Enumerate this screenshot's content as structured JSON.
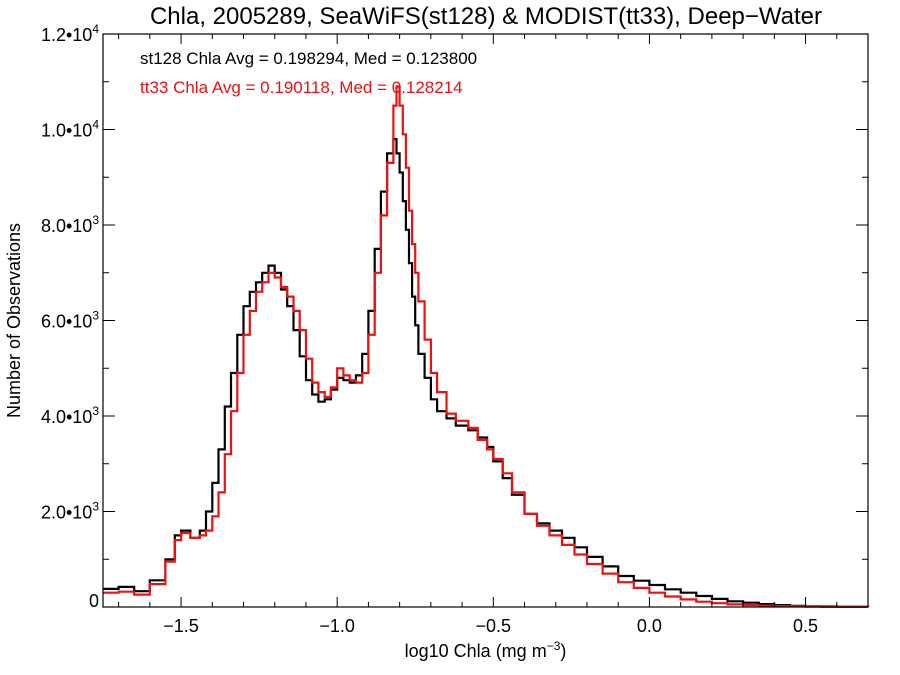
{
  "chart_data": {
    "type": "line",
    "step": true,
    "title": "Chla, 2005289, SeaWiFS(st128) & MODIST(tt33), Deep−Water",
    "xlabel": "log10 Chla (mg m",
    "xlabel_sup": "−3",
    "xlabel_tail": ")",
    "ylabel": "Number of Observations",
    "xlim": [
      -1.75,
      0.7
    ],
    "ylim": [
      0,
      12000
    ],
    "grid": false,
    "x_ticks": [
      {
        "value": -1.5,
        "label": "−1.5"
      },
      {
        "value": -1.0,
        "label": "−1.0"
      },
      {
        "value": -0.5,
        "label": "−0.5"
      },
      {
        "value": 0.0,
        "label": "0.0"
      },
      {
        "value": 0.5,
        "label": "0.5"
      }
    ],
    "y_ticks": [
      {
        "value": 0,
        "mant": "0",
        "exp": ""
      },
      {
        "value": 2000,
        "mant": "2.0•10",
        "exp": "3"
      },
      {
        "value": 4000,
        "mant": "4.0•10",
        "exp": "3"
      },
      {
        "value": 6000,
        "mant": "6.0•10",
        "exp": "3"
      },
      {
        "value": 8000,
        "mant": "8.0•10",
        "exp": "3"
      },
      {
        "value": 10000,
        "mant": "1.0•10",
        "exp": "4"
      },
      {
        "value": 12000,
        "mant": "1.2•10",
        "exp": "4"
      }
    ],
    "annotations": [
      {
        "text": "st128 Chla Avg = 0.198294, Med = 0.123800",
        "color": "#000000"
      },
      {
        "text": "tt33 Chla Avg = 0.190118, Med = 0.128214",
        "color": "#ee1111"
      }
    ],
    "series": [
      {
        "color": "#000000",
        "points": [
          [
            -1.75,
            380
          ],
          [
            -1.7,
            420
          ],
          [
            -1.65,
            330
          ],
          [
            -1.6,
            560
          ],
          [
            -1.55,
            1000
          ],
          [
            -1.52,
            1500
          ],
          [
            -1.5,
            1600
          ],
          [
            -1.47,
            1450
          ],
          [
            -1.44,
            1600
          ],
          [
            -1.42,
            2000
          ],
          [
            -1.4,
            2600
          ],
          [
            -1.38,
            3300
          ],
          [
            -1.36,
            4200
          ],
          [
            -1.34,
            4900
          ],
          [
            -1.32,
            5700
          ],
          [
            -1.3,
            6300
          ],
          [
            -1.28,
            6600
          ],
          [
            -1.26,
            6800
          ],
          [
            -1.24,
            7000
          ],
          [
            -1.22,
            7150
          ],
          [
            -1.2,
            7000
          ],
          [
            -1.18,
            6650
          ],
          [
            -1.16,
            6300
          ],
          [
            -1.14,
            5800
          ],
          [
            -1.12,
            5250
          ],
          [
            -1.1,
            4750
          ],
          [
            -1.08,
            4450
          ],
          [
            -1.06,
            4300
          ],
          [
            -1.04,
            4350
          ],
          [
            -1.02,
            4550
          ],
          [
            -1.0,
            4800
          ],
          [
            -0.98,
            4750
          ],
          [
            -0.96,
            4700
          ],
          [
            -0.94,
            4850
          ],
          [
            -0.92,
            5300
          ],
          [
            -0.9,
            6200
          ],
          [
            -0.88,
            7500
          ],
          [
            -0.86,
            8700
          ],
          [
            -0.84,
            9500
          ],
          [
            -0.82,
            9800
          ],
          [
            -0.81,
            9500
          ],
          [
            -0.8,
            9100
          ],
          [
            -0.79,
            8500
          ],
          [
            -0.78,
            7900
          ],
          [
            -0.77,
            7200
          ],
          [
            -0.76,
            6500
          ],
          [
            -0.75,
            5900
          ],
          [
            -0.74,
            5300
          ],
          [
            -0.72,
            4800
          ],
          [
            -0.7,
            4350
          ],
          [
            -0.68,
            4100
          ],
          [
            -0.65,
            3950
          ],
          [
            -0.62,
            3800
          ],
          [
            -0.58,
            3700
          ],
          [
            -0.55,
            3550
          ],
          [
            -0.52,
            3350
          ],
          [
            -0.5,
            3050
          ],
          [
            -0.47,
            2700
          ],
          [
            -0.44,
            2350
          ],
          [
            -0.4,
            1950
          ],
          [
            -0.36,
            1750
          ],
          [
            -0.32,
            1600
          ],
          [
            -0.28,
            1450
          ],
          [
            -0.24,
            1250
          ],
          [
            -0.2,
            1050
          ],
          [
            -0.15,
            850
          ],
          [
            -0.1,
            650
          ],
          [
            -0.05,
            550
          ],
          [
            0.0,
            460
          ],
          [
            0.05,
            370
          ],
          [
            0.1,
            300
          ],
          [
            0.15,
            230
          ],
          [
            0.2,
            170
          ],
          [
            0.25,
            120
          ],
          [
            0.3,
            90
          ],
          [
            0.35,
            60
          ],
          [
            0.4,
            40
          ],
          [
            0.45,
            25
          ],
          [
            0.5,
            15
          ],
          [
            0.55,
            10
          ],
          [
            0.6,
            5
          ],
          [
            0.65,
            3
          ],
          [
            0.7,
            0
          ]
        ]
      },
      {
        "color": "#ee1111",
        "points": [
          [
            -1.75,
            300
          ],
          [
            -1.7,
            320
          ],
          [
            -1.65,
            260
          ],
          [
            -1.6,
            480
          ],
          [
            -1.55,
            950
          ],
          [
            -1.52,
            1400
          ],
          [
            -1.5,
            1550
          ],
          [
            -1.47,
            1450
          ],
          [
            -1.44,
            1500
          ],
          [
            -1.42,
            1600
          ],
          [
            -1.4,
            1900
          ],
          [
            -1.38,
            2400
          ],
          [
            -1.36,
            3200
          ],
          [
            -1.34,
            4100
          ],
          [
            -1.32,
            4900
          ],
          [
            -1.3,
            5700
          ],
          [
            -1.28,
            6200
          ],
          [
            -1.26,
            6600
          ],
          [
            -1.24,
            6800
          ],
          [
            -1.22,
            7000
          ],
          [
            -1.2,
            6900
          ],
          [
            -1.18,
            6700
          ],
          [
            -1.16,
            6500
          ],
          [
            -1.14,
            6200
          ],
          [
            -1.12,
            5800
          ],
          [
            -1.1,
            5200
          ],
          [
            -1.08,
            4700
          ],
          [
            -1.06,
            4500
          ],
          [
            -1.04,
            4400
          ],
          [
            -1.02,
            4600
          ],
          [
            -1.0,
            5000
          ],
          [
            -0.98,
            4850
          ],
          [
            -0.96,
            4750
          ],
          [
            -0.94,
            4700
          ],
          [
            -0.92,
            4900
          ],
          [
            -0.9,
            5700
          ],
          [
            -0.88,
            7000
          ],
          [
            -0.86,
            8200
          ],
          [
            -0.84,
            9300
          ],
          [
            -0.82,
            10500
          ],
          [
            -0.81,
            10900
          ],
          [
            -0.8,
            10500
          ],
          [
            -0.79,
            9900
          ],
          [
            -0.78,
            9200
          ],
          [
            -0.77,
            8300
          ],
          [
            -0.76,
            7600
          ],
          [
            -0.75,
            7000
          ],
          [
            -0.74,
            6400
          ],
          [
            -0.72,
            5600
          ],
          [
            -0.7,
            4900
          ],
          [
            -0.68,
            4500
          ],
          [
            -0.65,
            4050
          ],
          [
            -0.62,
            3900
          ],
          [
            -0.58,
            3750
          ],
          [
            -0.55,
            3500
          ],
          [
            -0.52,
            3300
          ],
          [
            -0.5,
            3100
          ],
          [
            -0.47,
            2800
          ],
          [
            -0.44,
            2400
          ],
          [
            -0.4,
            1950
          ],
          [
            -0.36,
            1700
          ],
          [
            -0.32,
            1500
          ],
          [
            -0.28,
            1300
          ],
          [
            -0.24,
            1100
          ],
          [
            -0.2,
            900
          ],
          [
            -0.15,
            700
          ],
          [
            -0.1,
            520
          ],
          [
            -0.05,
            400
          ],
          [
            0.0,
            300
          ],
          [
            0.05,
            220
          ],
          [
            0.1,
            160
          ],
          [
            0.15,
            110
          ],
          [
            0.2,
            80
          ],
          [
            0.25,
            55
          ],
          [
            0.3,
            40
          ],
          [
            0.35,
            28
          ],
          [
            0.4,
            18
          ],
          [
            0.45,
            12
          ],
          [
            0.5,
            8
          ],
          [
            0.55,
            5
          ],
          [
            0.6,
            3
          ],
          [
            0.65,
            2
          ],
          [
            0.7,
            0
          ]
        ]
      }
    ]
  }
}
